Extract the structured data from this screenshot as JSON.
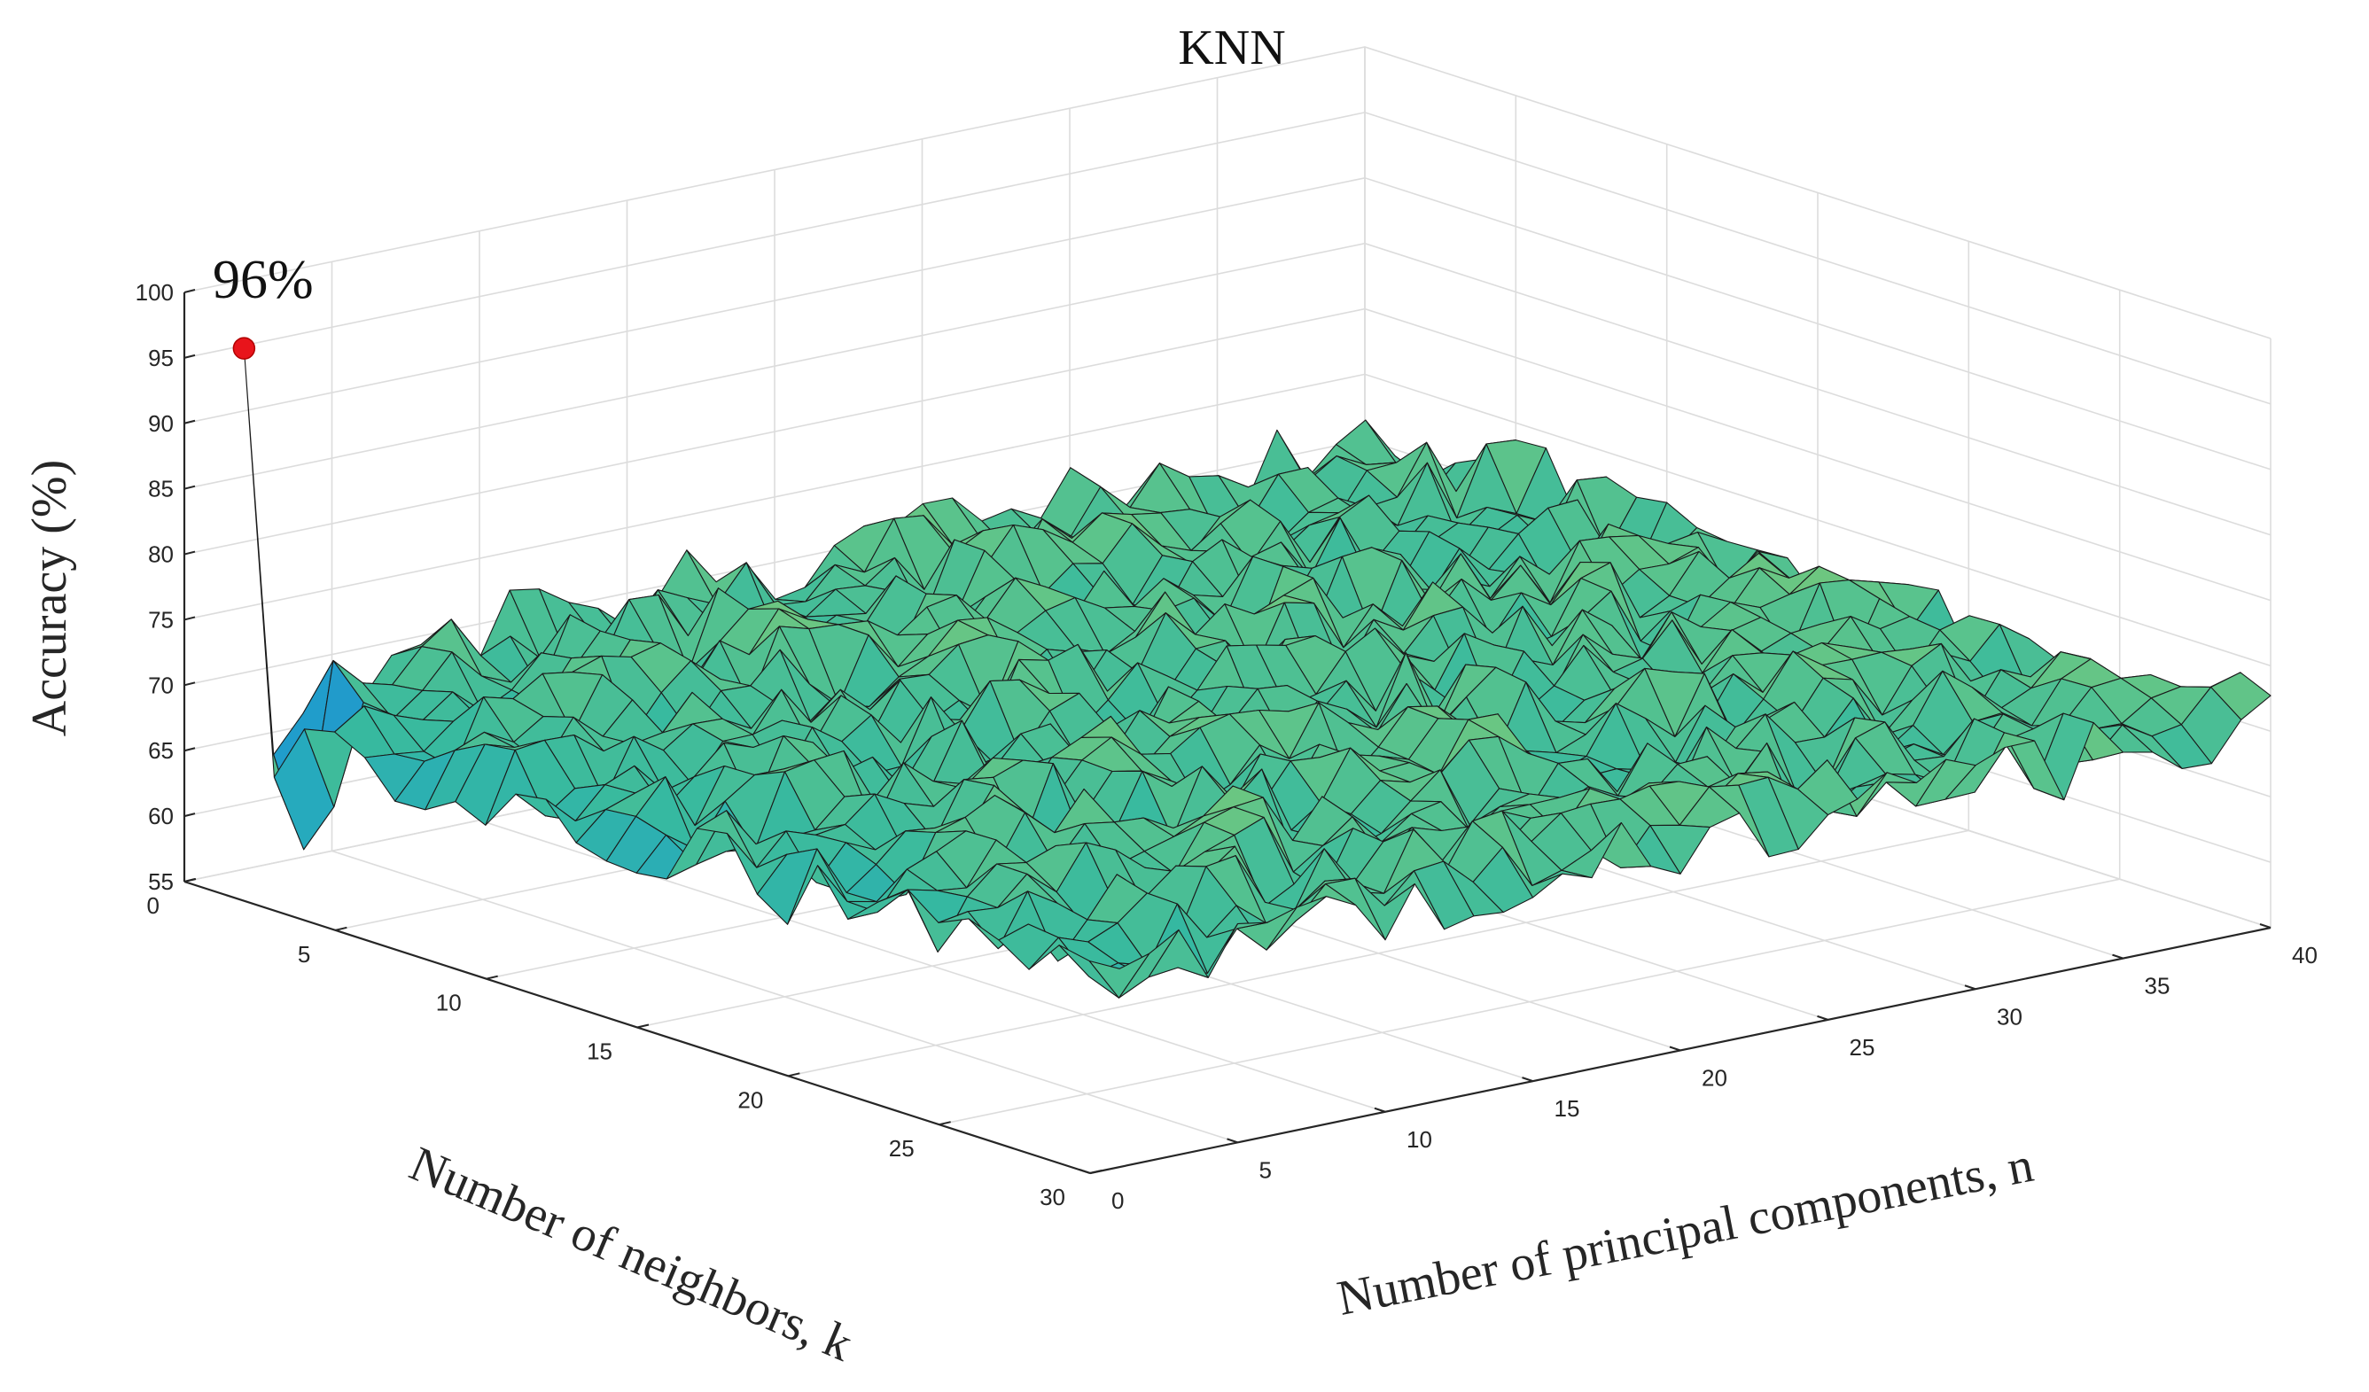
{
  "chart_data": {
    "type": "surface",
    "title": "KNN",
    "xlabel": "Number of neighbors, k",
    "ylabel": "Number of principal components, n",
    "zlabel": "Accuracy (%)",
    "xlim": [
      0,
      30
    ],
    "ylim": [
      0,
      40
    ],
    "zlim": [
      55,
      100
    ],
    "x_ticks": [
      0,
      5,
      10,
      15,
      20,
      25,
      30
    ],
    "y_ticks": [
      0,
      5,
      10,
      15,
      20,
      25,
      30,
      35,
      40
    ],
    "z_ticks": [
      55,
      60,
      65,
      70,
      75,
      80,
      85,
      90,
      95,
      100
    ],
    "k_range": [
      1,
      30
    ],
    "n_range": [
      1,
      40
    ],
    "surface_description_values": {
      "peak_accuracy": 96,
      "peak_at": {
        "k": 1,
        "n": 1
      },
      "typical_low_k_accuracy": 68,
      "typical_plateau_accuracy": 71,
      "plateau_noise_amplitude": 3
    },
    "annotation": {
      "text": "96%",
      "value": 96,
      "k": 1,
      "n": 1
    },
    "colormap": [
      "#2b6fd8",
      "#1fa3c9",
      "#36b9a0",
      "#5ec48a",
      "#8acb6e"
    ],
    "peak_marker_color": "#e8141b",
    "grid": true
  }
}
